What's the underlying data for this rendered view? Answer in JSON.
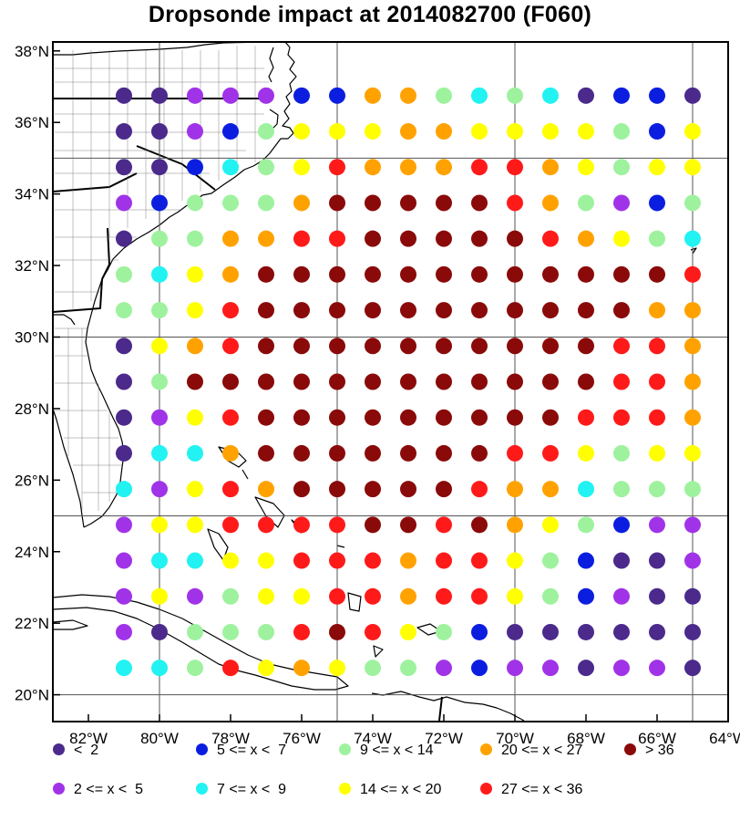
{
  "title": "Dropsonde impact at 2014082700 (F060)",
  "map": {
    "lon_range": [
      -83,
      -64
    ],
    "lat_range": [
      19.25,
      38.25
    ],
    "grid_lons": [
      -80,
      -75,
      -70,
      -65
    ],
    "grid_lats": [
      20,
      25,
      30,
      35
    ],
    "x_ticks": [
      {
        "lon": -82,
        "label": "82°W"
      },
      {
        "lon": -80,
        "label": "80°W"
      },
      {
        "lon": -78,
        "label": "78°W"
      },
      {
        "lon": -76,
        "label": "76°W"
      },
      {
        "lon": -74,
        "label": "74°W"
      },
      {
        "lon": -72,
        "label": "72°W"
      },
      {
        "lon": -70,
        "label": "70°W"
      },
      {
        "lon": -68,
        "label": "68°W"
      },
      {
        "lon": -66,
        "label": "66°W"
      },
      {
        "lon": -64,
        "label": "64°W"
      }
    ],
    "y_ticks": [
      {
        "lat": 38,
        "label": "38°N"
      },
      {
        "lat": 36,
        "label": "36°N"
      },
      {
        "lat": 34,
        "label": "34°N"
      },
      {
        "lat": 32,
        "label": "32°N"
      },
      {
        "lat": 30,
        "label": "30°N"
      },
      {
        "lat": 28,
        "label": "28°N"
      },
      {
        "lat": 26,
        "label": "26°N"
      },
      {
        "lat": 24,
        "label": "24°N"
      },
      {
        "lat": 22,
        "label": "22°N"
      },
      {
        "lat": 20,
        "label": "20°N"
      }
    ],
    "grid_start_lon": -81,
    "grid_step_lon": 1,
    "grid_start_lat": 36.75,
    "grid_step_lat": -1
  },
  "categories": {
    "c0": {
      "label": "<  2",
      "color": "#4b2a8c"
    },
    "c1": {
      "label": "2 <= x <  5",
      "color": "#a033e8"
    },
    "c2": {
      "label": "5 <= x <  7",
      "color": "#0b1ee0"
    },
    "c3": {
      "label": "7 <= x <  9",
      "color": "#22f2f2"
    },
    "c4": {
      "label": "9 <= x < 14",
      "color": "#9ef29e"
    },
    "c5": {
      "label": "14 <= x < 20",
      "color": "#ffff00"
    },
    "c6": {
      "label": "20 <= x < 27",
      "color": "#ffa200"
    },
    "c7": {
      "label": "27 <= x < 36",
      "color": "#ff1a1a"
    },
    "c8": {
      "label": "> 36",
      "color": "#8a0a0a"
    }
  },
  "legend": [
    [
      "c0",
      "c2",
      "c4",
      "c6",
      "c8"
    ],
    [
      "c1",
      "c3",
      "c5",
      "c7"
    ]
  ],
  "impact_rows": [
    "0 0 1 1 1 2 2 6 6 4 3 4 3 0 2 2 0",
    "0 0 1 2 4 5 5 5 6 6 5 5 5 5 4 2 5",
    "0 0 2 3 4 5 7 6 6 6 7 7 6 5 4 5 5",
    "1 2 4 4 4 6 8 8 8 8 8 7 6 4 1 2 4",
    "0 4 4 6 6 7 7 8 8 8 8 8 7 6 5 4 3",
    "4 3 5 6 8 8 8 8 8 8 8 8 8 8 8 8 7",
    "4 4 5 7 8 8 8 8 8 8 8 8 8 8 8 6 6",
    "0 5 6 7 8 8 8 8 8 8 8 8 8 8 7 7 6",
    "0 4 8 8 8 8 8 8 8 8 8 8 8 8 7 7 6",
    "0 1 5 7 8 8 8 8 8 8 8 8 8 7 7 7 6",
    "0 3 3 6 8 8 8 8 8 8 8 7 7 5 4 5 5",
    "3 1 5 7 6 8 8 8 8 8 7 6 6 3 4 4 4",
    "1 5 5 7 7 7 7 8 8 7 8 6 5 4 2 1 1",
    "1 3 3 5 5 7 7 7 6 7 7 5 4 2 0 0 1",
    "1 5 1 4 5 5 7 7 6 7 7 5 4 2 1 0 0",
    "1 0 4 4 4 7 8 7 5 4 2 0 0 0 0 0 0",
    "3 3 4 7 5 6 5 4 4 1 2 1 1 0 1 1 0"
  ]
}
